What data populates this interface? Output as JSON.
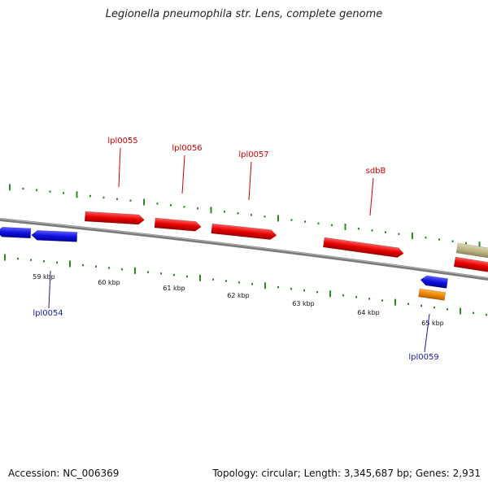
{
  "title": "Legionella pneumophila str. Lens, complete genome",
  "footer": {
    "accession": "Accession: NC_006369",
    "summary": "Topology: circular; Length: 3,345,687 bp; Genes: 2,931"
  },
  "colors": {
    "backbone": "#7a7a7a",
    "tick": "#2e8b22",
    "forward_gene": "#e60000",
    "reverse_gene": "#1010e0",
    "forward_label": "#cc0000",
    "reverse_label": "#1a1aa8",
    "rna_gene": "#ee8800",
    "other_gene": "#bdb585"
  },
  "scale_labels": [
    "59 kbp",
    "60 kbp",
    "61 kbp",
    "62 kbp",
    "63 kbp",
    "64 kbp",
    "65 kbp"
  ],
  "gene_labels": {
    "forward": [
      "lpl0055",
      "lpl0056",
      "lpl0057",
      "sdbB"
    ],
    "reverse": [
      "lpl0054",
      "lpl0059"
    ]
  }
}
